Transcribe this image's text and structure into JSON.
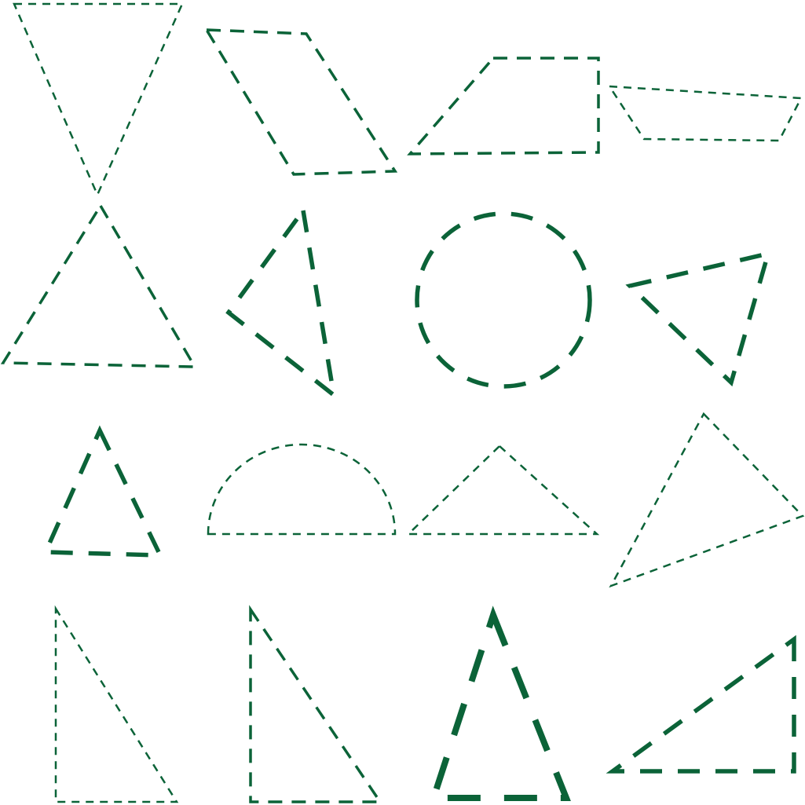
{
  "style": {
    "stroke_color": "#0b6338",
    "background": "#ffffff"
  },
  "shapes": [
    {
      "id": "inverted-triangle",
      "kind": "triangle"
    },
    {
      "id": "parallelogram",
      "kind": "parallelogram"
    },
    {
      "id": "trapezoid",
      "kind": "trapezoid"
    },
    {
      "id": "flat-trapezoid",
      "kind": "trapezoid"
    },
    {
      "id": "large-triangle",
      "kind": "triangle"
    },
    {
      "id": "scalene-triangle",
      "kind": "triangle"
    },
    {
      "id": "circle",
      "kind": "circle"
    },
    {
      "id": "tilted-triangle",
      "kind": "triangle"
    },
    {
      "id": "small-triangle",
      "kind": "triangle"
    },
    {
      "id": "semicircle",
      "kind": "semicircle"
    },
    {
      "id": "obtuse-triangle",
      "kind": "triangle"
    },
    {
      "id": "rotated-triangle",
      "kind": "triangle"
    },
    {
      "id": "right-triangle-1",
      "kind": "right-triangle"
    },
    {
      "id": "right-triangle-2",
      "kind": "right-triangle"
    },
    {
      "id": "bold-triangle",
      "kind": "triangle"
    },
    {
      "id": "right-triangle-3",
      "kind": "right-triangle"
    }
  ]
}
